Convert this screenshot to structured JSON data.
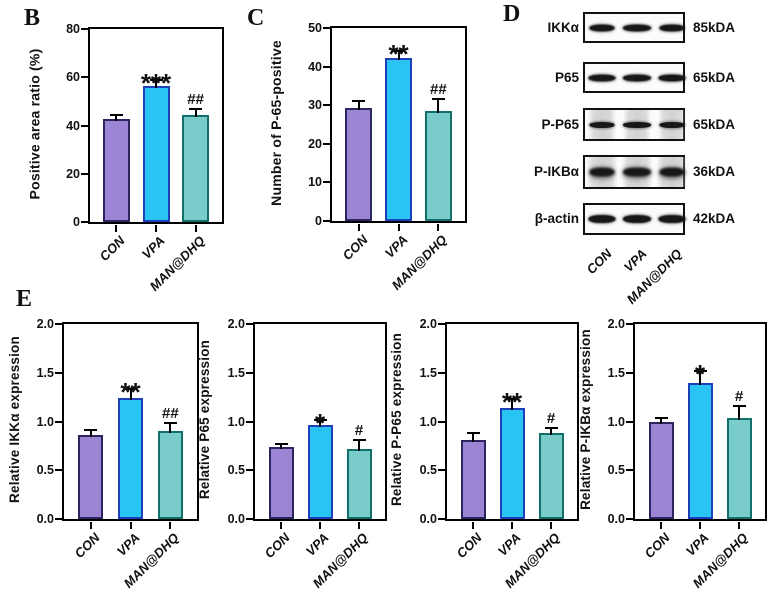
{
  "figure": {
    "panel_labels": {
      "B": "B",
      "C": "C",
      "D": "D",
      "E": "E"
    }
  },
  "colors": {
    "axis": "#000000",
    "error_bar": "#000000",
    "con_fill": "#9c85d4",
    "con_border": "#2b2660",
    "vpa_fill": "#29c3f4",
    "vpa_border": "#1d40ba",
    "man_fill": "#7accca",
    "man_border": "#11706a"
  },
  "chart_data": [
    {
      "id": "B",
      "type": "bar",
      "panel": "B",
      "title": "",
      "xlabel": "",
      "ylabel": "Positive area ratio (%)",
      "categories": [
        "CON",
        "VPA",
        "MAN@DHQ"
      ],
      "values": [
        42.5,
        56.5,
        44.5
      ],
      "errors": [
        2.0,
        2.5,
        2.5
      ],
      "sig_labels": [
        "",
        "***",
        "##"
      ],
      "ylim": [
        0,
        80
      ],
      "yticks": [
        "0",
        "20",
        "40",
        "60",
        "80"
      ],
      "bar_colors": [
        "con",
        "vpa",
        "man"
      ],
      "grid": false,
      "legend": false
    },
    {
      "id": "C",
      "type": "bar",
      "panel": "C",
      "title": "",
      "xlabel": "",
      "ylabel": "Number of P-65-positive",
      "categories": [
        "CON",
        "VPA",
        "MAN@DHQ"
      ],
      "values": [
        29.2,
        42.3,
        28.4
      ],
      "errors": [
        1.8,
        1.7,
        3.3
      ],
      "sig_labels": [
        "",
        "**",
        "##"
      ],
      "ylim": [
        0,
        50
      ],
      "yticks": [
        "0",
        "10",
        "20",
        "30",
        "40",
        "50"
      ],
      "bar_colors": [
        "con",
        "vpa",
        "man"
      ],
      "grid": false,
      "legend": false
    },
    {
      "id": "E1",
      "type": "bar",
      "panel": "E",
      "title": "",
      "xlabel": "",
      "ylabel": "Relative IKKα expression",
      "categories": [
        "CON",
        "VPA",
        "MAN@DHQ"
      ],
      "values": [
        0.86,
        1.24,
        0.9
      ],
      "errors": [
        0.05,
        0.09,
        0.08
      ],
      "sig_labels": [
        "",
        "**",
        "##"
      ],
      "ylim": [
        0,
        2
      ],
      "yticks": [
        "0.0",
        "0.5",
        "1.0",
        "1.5",
        "2.0"
      ],
      "bar_colors": [
        "con",
        "vpa",
        "man"
      ],
      "grid": false,
      "legend": false
    },
    {
      "id": "E2",
      "type": "bar",
      "panel": "E",
      "title": "",
      "xlabel": "",
      "ylabel": "Relative P65 expression",
      "categories": [
        "CON",
        "VPA",
        "MAN@DHQ"
      ],
      "values": [
        0.74,
        0.96,
        0.72
      ],
      "errors": [
        0.03,
        0.06,
        0.09
      ],
      "sig_labels": [
        "",
        "*",
        "#"
      ],
      "ylim": [
        0,
        2
      ],
      "yticks": [
        "0.0",
        "0.5",
        "1.0",
        "1.5",
        "2.0"
      ],
      "bar_colors": [
        "con",
        "vpa",
        "man"
      ],
      "grid": false,
      "legend": false
    },
    {
      "id": "E3",
      "type": "bar",
      "panel": "E",
      "title": "",
      "xlabel": "",
      "ylabel": "Relative P-P65 expression",
      "categories": [
        "CON",
        "VPA",
        "MAN@DHQ"
      ],
      "values": [
        0.81,
        1.14,
        0.88
      ],
      "errors": [
        0.07,
        0.09,
        0.05
      ],
      "sig_labels": [
        "",
        "**",
        "#"
      ],
      "ylim": [
        0,
        2
      ],
      "yticks": [
        "0.0",
        "0.5",
        "1.0",
        "1.5",
        "2.0"
      ],
      "bar_colors": [
        "con",
        "vpa",
        "man"
      ],
      "grid": false,
      "legend": false
    },
    {
      "id": "E4",
      "type": "bar",
      "panel": "E",
      "title": "",
      "xlabel": "",
      "ylabel": "Relative P-IKBα expression",
      "categories": [
        "CON",
        "VPA",
        "MAN@DHQ"
      ],
      "values": [
        1.0,
        1.4,
        1.04
      ],
      "errors": [
        0.04,
        0.12,
        0.12
      ],
      "sig_labels": [
        "",
        "*",
        "#"
      ],
      "ylim": [
        0,
        2
      ],
      "yticks": [
        "0.0",
        "0.5",
        "1.0",
        "1.5",
        "2.0"
      ],
      "bar_colors": [
        "con",
        "vpa",
        "man"
      ],
      "grid": false,
      "legend": false
    }
  ],
  "western_blot": {
    "lanes": [
      "CON",
      "VPA",
      "MAN@DHQ"
    ],
    "rows": [
      {
        "protein": "IKKα",
        "kda": "85kDA",
        "smudge": 0
      },
      {
        "protein": "P65",
        "kda": "65kDA",
        "smudge": 0
      },
      {
        "protein": "P-P65",
        "kda": "65kDA",
        "smudge": 1
      },
      {
        "protein": "P-IKBα",
        "kda": "36kDA",
        "smudge": 2
      },
      {
        "protein": "β-actin",
        "kda": "42kDA",
        "smudge": 0
      }
    ]
  }
}
